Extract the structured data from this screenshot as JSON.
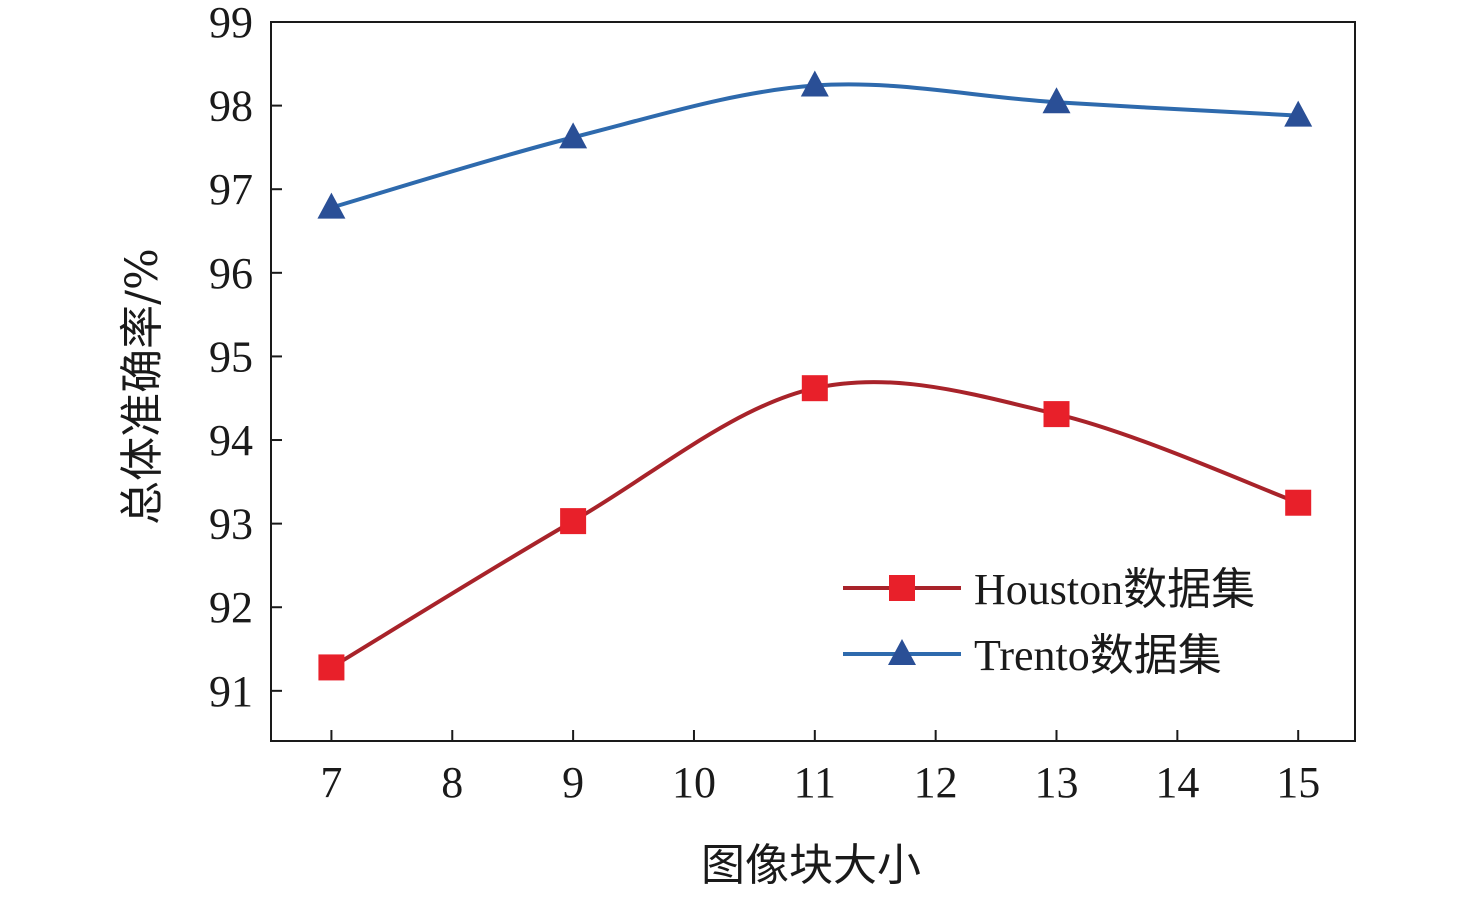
{
  "chart_data": {
    "type": "line",
    "title": "",
    "xlabel": "图像块大小",
    "ylabel": "总体准确率/%",
    "xlim": [
      6.5,
      15.47
    ],
    "ylim": [
      90.4,
      99
    ],
    "x_ticks": [
      7,
      8,
      9,
      10,
      11,
      12,
      13,
      14,
      15
    ],
    "y_ticks": [
      91,
      92,
      93,
      94,
      95,
      96,
      97,
      98,
      99
    ],
    "x": [
      7,
      9,
      11,
      13,
      15
    ],
    "series": [
      {
        "name": "Houston数据集",
        "values": [
          91.28,
          93.03,
          94.62,
          94.31,
          93.25
        ],
        "color": "#a8232a",
        "marker": "square",
        "marker_color": "#e8202a"
      },
      {
        "name": "Trento数据集",
        "values": [
          96.78,
          97.62,
          98.24,
          98.04,
          97.88
        ],
        "color": "#2e6aad",
        "marker": "triangle",
        "marker_color": "#2a4f96"
      }
    ],
    "legend_position": "bottom-right",
    "grid": false
  }
}
